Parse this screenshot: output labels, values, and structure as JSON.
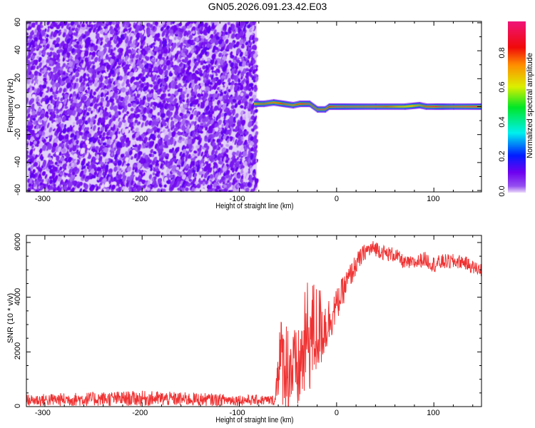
{
  "title": "GN05.2026.091.23.42.E03",
  "chart_data": [
    {
      "type": "heatmap",
      "title": "GN05.2026.091.23.42.E03",
      "xlabel": "Height of straight line (km)",
      "ylabel": "Frequency (Hz)",
      "xlim": [
        -319,
        149
      ],
      "ylim": [
        -61,
        61
      ],
      "xticks": [
        -300,
        -200,
        -100,
        0,
        100
      ],
      "yticks": [
        -60,
        -40,
        -20,
        0,
        20,
        40,
        60
      ],
      "noise_region_x": [
        -319,
        -82
      ],
      "ridge": [
        [
          -85,
          2,
          0.75
        ],
        [
          -75,
          2,
          0.85
        ],
        [
          -65,
          3,
          0.8
        ],
        [
          -55,
          2,
          0.85
        ],
        [
          -45,
          1,
          0.8
        ],
        [
          -38,
          2,
          0.9
        ],
        [
          -28,
          2,
          0.9
        ],
        [
          -20,
          -2,
          0.9
        ],
        [
          -12,
          -2,
          0.9
        ],
        [
          -8,
          0,
          0.85
        ],
        [
          0,
          0,
          0.95
        ],
        [
          40,
          0,
          0.95
        ],
        [
          70,
          0,
          0.7
        ],
        [
          85,
          1,
          0.75
        ],
        [
          92,
          0,
          0.9
        ],
        [
          120,
          0,
          0.95
        ],
        [
          149,
          0,
          0.95
        ]
      ],
      "colorbar": {
        "label": "Normalized spectral amplitude",
        "range": [
          0,
          0.98
        ],
        "ticks": [
          "0.0",
          "0.2",
          "0.4",
          "0.6",
          "0.8"
        ]
      }
    },
    {
      "type": "line",
      "xlabel": "Height of straight line (km)",
      "ylabel": "SNR (10 * v/v)",
      "xlim": [
        -319,
        149
      ],
      "ylim": [
        0,
        6260
      ],
      "xticks": [
        -300,
        -200,
        -100,
        0,
        100
      ],
      "yticks": [
        0,
        2000,
        4000,
        6000
      ],
      "color": "#ef3232",
      "envelope_x_mean_spread": [
        [
          -319,
          230,
          220
        ],
        [
          -250,
          280,
          260
        ],
        [
          -200,
          300,
          280
        ],
        [
          -150,
          270,
          250
        ],
        [
          -100,
          240,
          200
        ],
        [
          -63,
          230,
          180
        ],
        [
          -60,
          1800,
          1500
        ],
        [
          -50,
          1500,
          1800
        ],
        [
          -40,
          1200,
          1500
        ],
        [
          -30,
          2500,
          2200
        ],
        [
          -20,
          2800,
          1800
        ],
        [
          -10,
          3000,
          1000
        ],
        [
          0,
          3700,
          600
        ],
        [
          10,
          4500,
          500
        ],
        [
          20,
          5200,
          400
        ],
        [
          30,
          5700,
          300
        ],
        [
          40,
          5800,
          300
        ],
        [
          50,
          5600,
          280
        ],
        [
          60,
          5550,
          280
        ],
        [
          70,
          5250,
          250
        ],
        [
          80,
          5250,
          250
        ],
        [
          90,
          5400,
          280
        ],
        [
          100,
          5200,
          300
        ],
        [
          110,
          5300,
          280
        ],
        [
          120,
          5300,
          280
        ],
        [
          130,
          5300,
          250
        ],
        [
          140,
          5100,
          250
        ],
        [
          149,
          5000,
          250
        ]
      ]
    }
  ]
}
